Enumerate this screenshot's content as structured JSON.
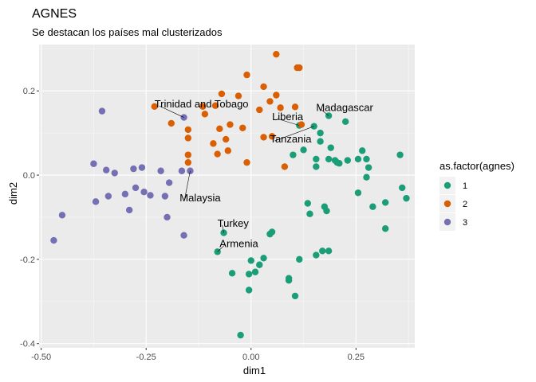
{
  "chart_data": {
    "type": "scatter",
    "title": "AGNES",
    "subtitle": "Se destacan los países mal clusterizados",
    "xlabel": "dim1",
    "ylabel": "dim2",
    "xlim": [
      -0.505,
      0.39
    ],
    "ylim": [
      -0.41,
      0.31
    ],
    "xticks": [
      -0.5,
      -0.25,
      0.0,
      0.25
    ],
    "xtick_labels": [
      "-0.50",
      "-0.25",
      "0.00",
      "0.25"
    ],
    "yticks": [
      -0.4,
      -0.2,
      0.0,
      0.2
    ],
    "ytick_labels": [
      "-0.4",
      "-0.2",
      "0.0",
      "0.2"
    ],
    "grid": true,
    "legend": {
      "title": "as.factor(agnes)",
      "position": "right",
      "entries": [
        {
          "label": "1",
          "color": "#1B9E77"
        },
        {
          "label": "2",
          "color": "#D95F02"
        },
        {
          "label": "3",
          "color": "#7570B3"
        }
      ]
    },
    "series": [
      {
        "name": "1",
        "color": "#1B9E77",
        "points": [
          [
            0.185,
            0.141
          ],
          [
            0.225,
            0.127
          ],
          [
            0.15,
            0.116
          ],
          [
            0.115,
            0.118
          ],
          [
            0.165,
            0.1
          ],
          [
            0.165,
            0.08
          ],
          [
            0.19,
            0.065
          ],
          [
            0.125,
            0.06
          ],
          [
            0.1,
            0.048
          ],
          [
            0.155,
            0.038
          ],
          [
            0.155,
            0.02
          ],
          [
            0.185,
            0.038
          ],
          [
            0.2,
            0.035
          ],
          [
            0.205,
            0.03
          ],
          [
            0.21,
            0.028
          ],
          [
            0.23,
            0.035
          ],
          [
            0.255,
            0.038
          ],
          [
            0.265,
            0.058
          ],
          [
            0.275,
            0.038
          ],
          [
            0.28,
            0.018
          ],
          [
            0.275,
            -0.005
          ],
          [
            0.255,
            -0.042
          ],
          [
            0.355,
            0.048
          ],
          [
            0.36,
            -0.03
          ],
          [
            0.37,
            -0.055
          ],
          [
            0.32,
            -0.065
          ],
          [
            0.29,
            -0.075
          ],
          [
            0.32,
            -0.127
          ],
          [
            0.18,
            -0.085
          ],
          [
            0.175,
            -0.075
          ],
          [
            0.135,
            -0.067
          ],
          [
            0.14,
            -0.092
          ],
          [
            0.17,
            -0.18
          ],
          [
            0.185,
            -0.18
          ],
          [
            0.155,
            -0.19
          ],
          [
            0.115,
            -0.2
          ],
          [
            0.09,
            -0.245
          ],
          [
            0.09,
            -0.25
          ],
          [
            0.105,
            -0.287
          ],
          [
            0.05,
            -0.135
          ],
          [
            0.045,
            -0.14
          ],
          [
            0.03,
            -0.197
          ],
          [
            0.0,
            -0.203
          ],
          [
            0.02,
            -0.213
          ],
          [
            0.01,
            -0.23
          ],
          [
            -0.005,
            -0.235
          ],
          [
            -0.005,
            -0.273
          ],
          [
            -0.045,
            -0.233
          ],
          [
            -0.08,
            -0.182
          ],
          [
            -0.065,
            -0.137
          ],
          [
            -0.025,
            -0.38
          ]
        ]
      },
      {
        "name": "2",
        "color": "#D95F02",
        "points": [
          [
            0.06,
            0.287
          ],
          [
            0.11,
            0.255
          ],
          [
            0.115,
            0.255
          ],
          [
            -0.01,
            0.238
          ],
          [
            -0.07,
            0.193
          ],
          [
            0.03,
            0.21
          ],
          [
            0.06,
            0.19
          ],
          [
            0.045,
            0.175
          ],
          [
            0.07,
            0.16
          ],
          [
            -0.03,
            0.188
          ],
          [
            0.02,
            0.155
          ],
          [
            0.105,
            0.162
          ],
          [
            -0.085,
            0.165
          ],
          [
            -0.115,
            0.163
          ],
          [
            -0.11,
            0.145
          ],
          [
            -0.05,
            0.12
          ],
          [
            -0.075,
            0.11
          ],
          [
            -0.02,
            0.112
          ],
          [
            0.03,
            0.09
          ],
          [
            0.05,
            0.092
          ],
          [
            -0.23,
            0.163
          ],
          [
            -0.19,
            0.123
          ],
          [
            -0.15,
            0.108
          ],
          [
            -0.15,
            0.088
          ],
          [
            -0.09,
            0.075
          ],
          [
            -0.06,
            0.085
          ],
          [
            -0.055,
            0.058
          ],
          [
            -0.08,
            0.05
          ],
          [
            -0.15,
            0.048
          ],
          [
            -0.15,
            0.03
          ],
          [
            -0.01,
            0.03
          ],
          [
            0.08,
            0.02
          ],
          [
            0.12,
            0.12
          ]
        ]
      },
      {
        "name": "3",
        "color": "#7570B3",
        "points": [
          [
            -0.355,
            0.152
          ],
          [
            -0.16,
            0.137
          ],
          [
            -0.375,
            0.027
          ],
          [
            -0.345,
            0.012
          ],
          [
            -0.325,
            0.005
          ],
          [
            -0.28,
            0.015
          ],
          [
            -0.26,
            0.018
          ],
          [
            -0.215,
            0.01
          ],
          [
            -0.165,
            0.01
          ],
          [
            -0.145,
            0.01
          ],
          [
            -0.195,
            -0.018
          ],
          [
            -0.275,
            -0.03
          ],
          [
            -0.255,
            -0.04
          ],
          [
            -0.24,
            -0.048
          ],
          [
            -0.205,
            -0.05
          ],
          [
            -0.3,
            -0.045
          ],
          [
            -0.34,
            -0.05
          ],
          [
            -0.37,
            -0.063
          ],
          [
            -0.45,
            -0.095
          ],
          [
            -0.47,
            -0.155
          ],
          [
            -0.29,
            -0.083
          ],
          [
            -0.2,
            -0.1
          ],
          [
            -0.16,
            -0.143
          ]
        ]
      }
    ],
    "annotations": [
      {
        "text": "Trinidad and Tobago",
        "x": -0.16,
        "y": 0.137,
        "lx": -0.23,
        "ly": 0.168,
        "anchor": "start"
      },
      {
        "text": "Madagascar",
        "x": 0.185,
        "y": 0.141,
        "lx": 0.155,
        "ly": 0.16,
        "anchor": "start"
      },
      {
        "text": "Liberia",
        "x": 0.115,
        "y": 0.118,
        "lx": 0.05,
        "ly": 0.138,
        "anchor": "start"
      },
      {
        "text": "Tanzania",
        "x": 0.15,
        "y": 0.116,
        "lx": 0.045,
        "ly": 0.085,
        "anchor": "start"
      },
      {
        "text": "Malaysia",
        "x": -0.145,
        "y": 0.01,
        "lx": -0.17,
        "ly": -0.055,
        "anchor": "start"
      },
      {
        "text": "Turkey",
        "x": -0.065,
        "y": -0.137,
        "lx": -0.08,
        "ly": -0.115,
        "anchor": "start"
      },
      {
        "text": "Armenia",
        "x": -0.08,
        "y": -0.182,
        "lx": -0.075,
        "ly": -0.163,
        "anchor": "start"
      }
    ]
  }
}
